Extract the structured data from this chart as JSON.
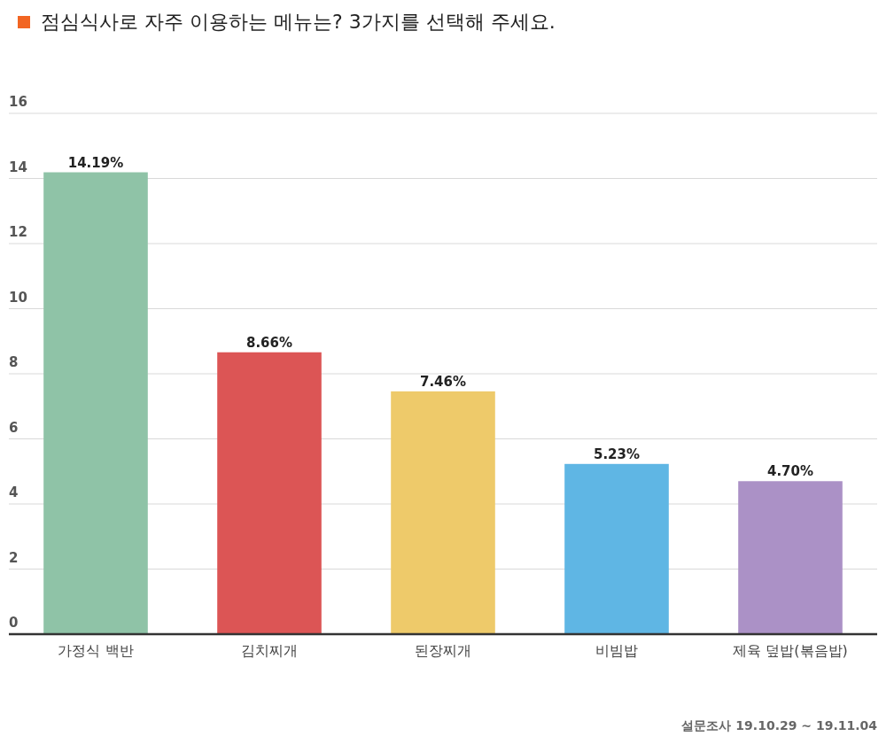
{
  "chart_data": {
    "type": "bar",
    "title": "점심식사로 자주 이용하는 메뉴는? 3가지를 선택해 주세요.",
    "categories": [
      "가정식 백반",
      "김치찌개",
      "된장찌개",
      "비빔밥",
      "제육 덮밥(볶음밥)"
    ],
    "values": [
      14.19,
      8.66,
      7.46,
      5.23,
      4.7
    ],
    "colors": [
      "#8fc3a7",
      "#dc5555",
      "#eeca6a",
      "#5fb6e4",
      "#ab91c6"
    ],
    "value_labels": [
      "14.19%",
      "8.66%",
      "7.46%",
      "5.23%",
      "4.70%"
    ],
    "ylim": [
      0,
      16
    ],
    "yticks": [
      0,
      2,
      4,
      6,
      8,
      10,
      12,
      14,
      16
    ],
    "grid": "y",
    "annotations": [
      "설문조사 19.10.29 ~ 19.11.04"
    ]
  }
}
